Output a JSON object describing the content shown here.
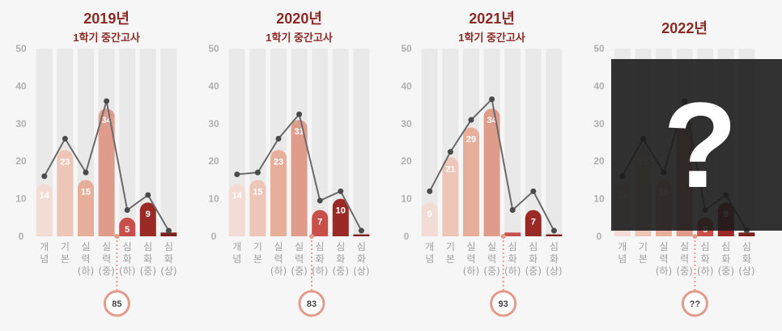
{
  "colors": {
    "grid": "#e9e9e9",
    "line": "#6b6b6b",
    "dot": "#4a4a4a",
    "axis_text": "#b0b0b0",
    "title": "#8b2a25",
    "bars": [
      "#f3dcd4",
      "#eec6b8",
      "#e7ae9a",
      "#df9c8b",
      "#c94f4a",
      "#9a2a26",
      "#7c211d"
    ],
    "score_circle": "#e49b8c"
  },
  "chart_data": [
    {
      "type": "bar",
      "title": "2019년",
      "subtitle": "1학기 중간고사",
      "categories": [
        "개념",
        "기본",
        "실력(하)",
        "실력(중)",
        "심화(하)",
        "심화(중)",
        "심화(상)"
      ],
      "bar_values": [
        14,
        23,
        15,
        34,
        5,
        9,
        1
      ],
      "bar_labels": [
        "14",
        "23",
        "15",
        "34",
        "5",
        "9",
        ""
      ],
      "line_values": [
        16,
        26,
        17,
        36,
        7,
        11,
        1.5
      ],
      "ylim": [
        0,
        50
      ],
      "yticks": [
        0,
        10,
        20,
        30,
        40,
        50
      ],
      "score": "85",
      "score_marker_index": 3.5
    },
    {
      "type": "bar",
      "title": "2020년",
      "subtitle": "1학기 중간고사",
      "categories": [
        "개념",
        "기본",
        "실력(하)",
        "실력(중)",
        "심화(하)",
        "심화(중)",
        "심화(상)"
      ],
      "bar_values": [
        14,
        15,
        23,
        31,
        7,
        10,
        0.5
      ],
      "bar_labels": [
        "14",
        "15",
        "23",
        "31",
        "7",
        "10",
        ""
      ],
      "line_values": [
        16.5,
        17,
        26,
        32.5,
        9.5,
        12,
        1.5
      ],
      "ylim": [
        0,
        50
      ],
      "yticks": [
        0,
        10,
        20,
        30,
        40,
        50
      ],
      "score": "83",
      "score_marker_index": 3.6
    },
    {
      "type": "bar",
      "title": "2021년",
      "subtitle": "1학기 중간고사",
      "categories": [
        "개념",
        "기본",
        "실력(하)",
        "실력(중)",
        "심화(하)",
        "심화(중)",
        "심화(상)"
      ],
      "bar_values": [
        9,
        21,
        29,
        34,
        1,
        7,
        0.5
      ],
      "bar_labels": [
        "9",
        "21",
        "29",
        "34",
        "",
        "7",
        ""
      ],
      "line_values": [
        12,
        22.5,
        31,
        36.5,
        7,
        12,
        1.5
      ],
      "ylim": [
        0,
        50
      ],
      "yticks": [
        0,
        10,
        20,
        30,
        40,
        50
      ],
      "score": "93",
      "score_marker_index": 3.55
    },
    {
      "type": "bar",
      "title": "2022년",
      "subtitle": "",
      "categories": [
        "개념",
        "기본",
        "실력(하)",
        "실력(중)",
        "심화(하)",
        "심화(중)",
        "심화(상)"
      ],
      "bar_values": [
        14,
        23,
        15,
        34,
        5,
        9,
        1
      ],
      "bar_labels": [
        "14",
        "23",
        "15",
        "34",
        "5",
        "9",
        ""
      ],
      "line_values": [
        16,
        26,
        17,
        36,
        7,
        11,
        1.5
      ],
      "ylim": [
        0,
        50
      ],
      "yticks": [
        0,
        10,
        20,
        30,
        40,
        50
      ],
      "score": "??",
      "score_marker_index": 3.5,
      "hidden_overlay": "?"
    }
  ]
}
